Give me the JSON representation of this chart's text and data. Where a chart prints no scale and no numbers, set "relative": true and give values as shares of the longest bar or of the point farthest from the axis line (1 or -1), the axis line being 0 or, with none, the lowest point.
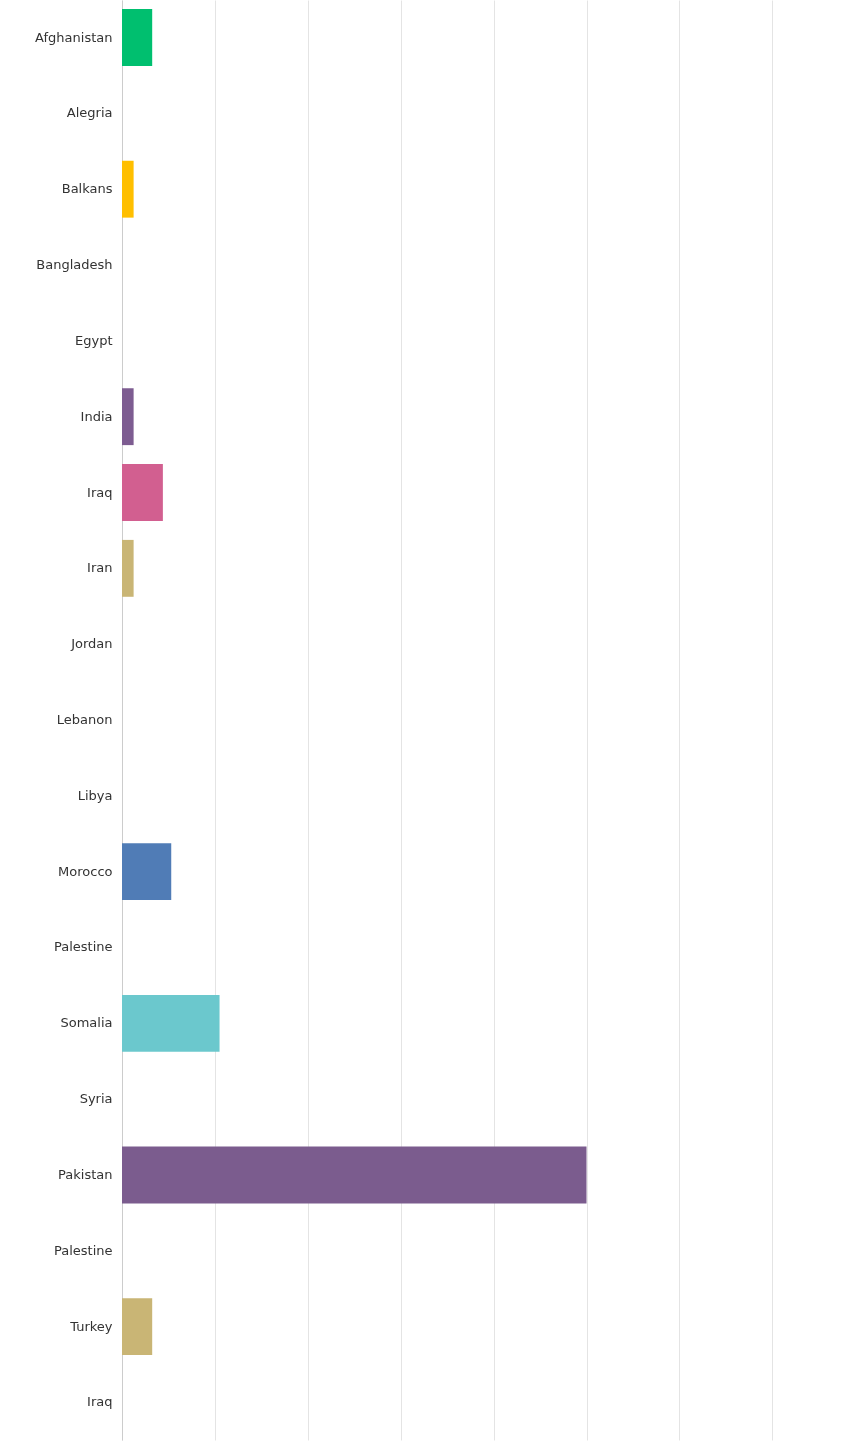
{
  "chart_data": {
    "type": "bar",
    "orientation": "horizontal",
    "relative": true,
    "grid": "x",
    "categories": [
      "Afghanistan",
      "Alegria",
      "Balkans",
      "Bangladesh",
      "Egypt",
      "India",
      "Iraq",
      "Iran",
      "Jordan",
      "Lebanon",
      "Libya",
      "Morocco",
      "Palestine",
      "Somalia",
      "Syria",
      "Pakistan",
      "Palestine",
      "Turkey",
      "Iraq"
    ],
    "values": [
      0.065,
      0,
      0.025,
      0,
      0,
      0.025,
      0.088,
      0.025,
      0,
      0,
      0,
      0.106,
      0,
      0.21,
      0,
      1,
      0,
      0.065,
      0
    ],
    "colors": [
      "#00bf6f",
      null,
      "#ffbf00",
      null,
      null,
      "#7d5c91",
      "#d25f90",
      "#c9b575",
      null,
      null,
      null,
      "#507cb6",
      null,
      "#6bc8cd",
      null,
      "#7b5c8e",
      null,
      "#c9b575",
      null
    ]
  }
}
